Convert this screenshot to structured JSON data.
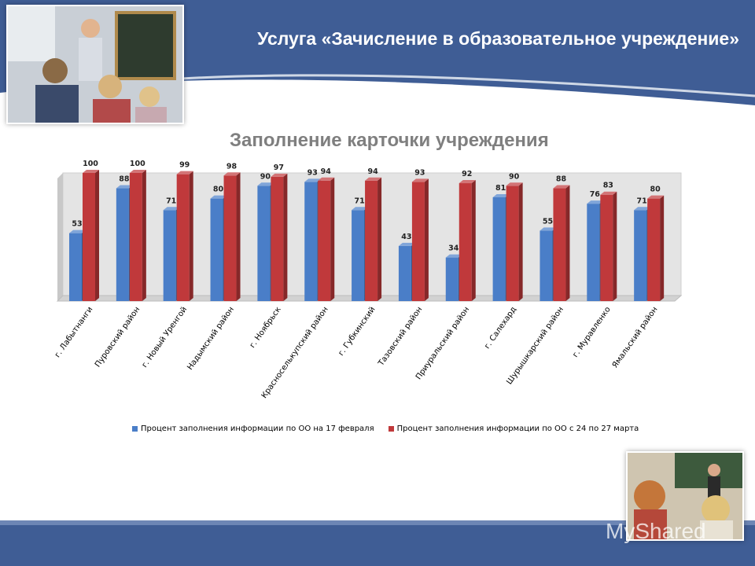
{
  "slide": {
    "title": "Услуга «Зачисление в образовательное учреждение»",
    "watermark": "MyShared"
  },
  "colors": {
    "banner": "#3f5d95",
    "series1": "#4a7ec8",
    "series2": "#c0393b",
    "title_gray": "#7f7f7f"
  },
  "chart_data": {
    "type": "bar",
    "title": "Заполнение карточки учреждения",
    "categories": [
      "г. Лабытнанги",
      "Пуровский район",
      "г. Новый Уренгой",
      "Надымский район",
      "г. Ноябрьск",
      "Красноселькупский район",
      "г. Губкинский",
      "Тазовский район",
      "Приуральский район",
      "г. Салехард",
      "Шурышкарский район",
      "г. Муравленко",
      "Ямальский район"
    ],
    "series": [
      {
        "name": "Процент заполнения информации по ОО  на 17 февраля",
        "values": [
          53,
          88,
          71,
          80,
          90,
          93,
          71,
          43,
          34,
          81,
          55,
          76,
          71
        ]
      },
      {
        "name": "Процент заполнения информации по ОО с 24 по 27 марта",
        "values": [
          100,
          100,
          99,
          98,
          97,
          94,
          94,
          93,
          92,
          90,
          88,
          83,
          80
        ]
      }
    ],
    "ylim": [
      0,
      100
    ],
    "grid": false,
    "legend_position": "bottom"
  }
}
